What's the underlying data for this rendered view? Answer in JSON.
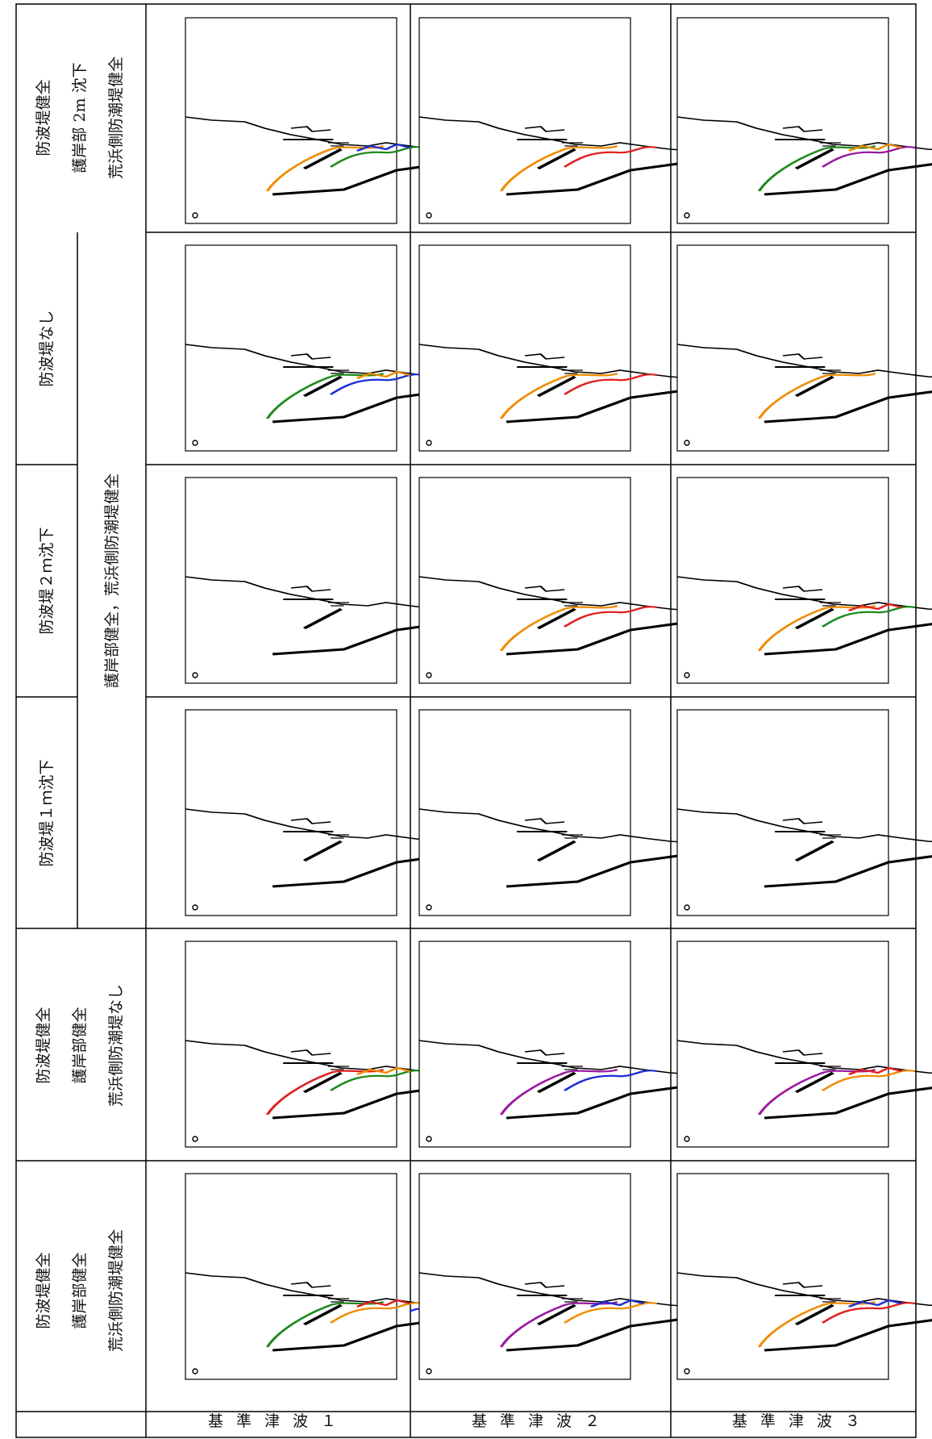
{
  "rows": [
    {
      "label": "基準津波１"
    },
    {
      "label": "基準津波２"
    },
    {
      "label": "基準津波３"
    }
  ],
  "columns": [
    {
      "lines": [
        "防波堤健全",
        "護岸部健全",
        "荒浜側防潮堤健全"
      ]
    },
    {
      "lines": [
        "防波堤健全",
        "護岸部健全",
        "荒浜側防潮堤なし"
      ]
    },
    {
      "lines": [
        "防波堤１ｍ沈下"
      ]
    },
    {
      "lines": [
        "防波堤２ｍ沈下"
      ]
    },
    {
      "lines": [
        "防波堤なし"
      ]
    },
    {
      "lines": [
        "防波堤健全",
        "護岸部 2m 沈下",
        "荒浜側防潮堤健全"
      ]
    }
  ],
  "merged_label": "護岸部健全，荒浜側防潮堤健全",
  "colors": {
    "green": "#1e8a1e",
    "orange": "#f08c00",
    "red": "#e02020",
    "blue": "#1c2fd6",
    "purple": "#9a1aa0"
  },
  "trails": [
    [
      "green",
      "orange",
      "red",
      "blue"
    ],
    [
      "purple",
      "orange",
      "blue"
    ],
    [
      "orange",
      "red",
      "blue"
    ],
    [
      "red",
      "green",
      "orange"
    ],
    [
      "purple",
      "blue"
    ],
    [
      "purple",
      "orange",
      "red"
    ],
    [],
    [],
    [],
    [],
    [
      "orange",
      "red"
    ],
    [
      "orange",
      "green",
      "red"
    ],
    [
      "green",
      "blue",
      "orange"
    ],
    [
      "orange",
      "red"
    ],
    [
      "orange"
    ],
    [
      "orange",
      "green",
      "blue"
    ],
    [
      "orange",
      "red"
    ],
    [
      "green",
      "purple",
      "orange"
    ]
  ]
}
